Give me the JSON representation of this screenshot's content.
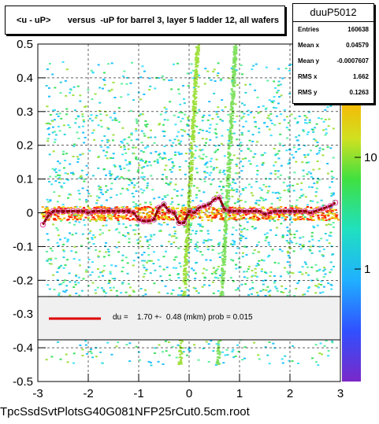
{
  "title": "<u - uP>       versus  -uP for barrel 3, layer 5 ladder 12, all wafers",
  "stats": {
    "name": "duuP5012",
    "rows": [
      {
        "label": "Entries",
        "value": "160638"
      },
      {
        "label": "Mean x",
        "value": "0.04579"
      },
      {
        "label": "Mean y",
        "value": "-0.0007607"
      },
      {
        "label": "RMS x",
        "value": "1.662"
      },
      {
        "label": "RMS y",
        "value": "0.1263"
      }
    ]
  },
  "fit_label": "du =    1.70 +-  0.48 (mkm) prob = 0.015",
  "footer": "TpcSsdSvtPlotsG40G081NFP25rCut0.5cm.root",
  "colors": {
    "fit_line": "#dd0000",
    "profile_marker": "#e040a0",
    "profile_line": "#880000"
  },
  "chart_data": {
    "type": "heatmap",
    "xlim": [
      -3,
      3
    ],
    "ylim": [
      -0.5,
      0.5
    ],
    "x_ticks": [
      "-3",
      "-2",
      "-1",
      "0",
      "1",
      "2",
      "3"
    ],
    "y_ticks": [
      "-0.5",
      "-0.4",
      "-0.3",
      "-0.2",
      "-0.1",
      "0",
      "0.1",
      "0.2",
      "0.3",
      "0.4",
      "0.5"
    ],
    "z_scale": "log",
    "z_ticks": [
      "1",
      "10"
    ],
    "grid": true,
    "profile": {
      "x": [
        -2.9,
        -2.8,
        -2.7,
        -2.6,
        -2.5,
        -2.4,
        -2.3,
        -2.2,
        -2.1,
        -2.0,
        -1.9,
        -1.8,
        -1.7,
        -1.6,
        -1.5,
        -1.4,
        -1.3,
        -1.2,
        -1.1,
        -1.0,
        -0.9,
        -0.8,
        -0.7,
        -0.6,
        -0.5,
        -0.4,
        -0.3,
        -0.2,
        -0.1,
        0.0,
        0.1,
        0.2,
        0.3,
        0.4,
        0.5,
        0.6,
        0.7,
        0.8,
        0.9,
        1.0,
        1.1,
        1.2,
        1.3,
        1.4,
        1.5,
        1.6,
        1.7,
        1.8,
        1.9,
        2.0,
        2.1,
        2.2,
        2.3,
        2.4,
        2.5,
        2.6,
        2.7,
        2.8,
        2.9
      ],
      "y": [
        -0.035,
        -0.01,
        0.005,
        0.005,
        0.005,
        0.005,
        0.005,
        0.005,
        0.005,
        0.0,
        0.005,
        0.005,
        0.005,
        0.005,
        0.005,
        0.005,
        0.005,
        0.005,
        0.0,
        -0.02,
        -0.025,
        -0.025,
        -0.02,
        0.015,
        0.025,
        0.005,
        0.0,
        -0.03,
        -0.03,
        0.005,
        0.0,
        0.015,
        0.02,
        0.025,
        0.04,
        0.045,
        0.01,
        0.005,
        0.005,
        0.005,
        0.005,
        0.005,
        0.005,
        0.005,
        -0.005,
        0.0,
        0.005,
        0.005,
        0.005,
        0.005,
        0.005,
        0.005,
        0.005,
        0.0,
        0.005,
        0.01,
        0.015,
        0.02,
        0.03
      ]
    },
    "fit": {
      "du_mkm": 1.7,
      "err_mkm": 0.48,
      "prob": 0.015
    }
  }
}
